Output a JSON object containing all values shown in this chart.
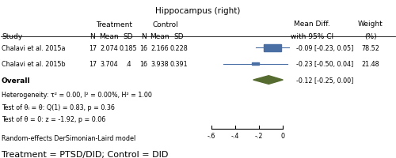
{
  "title": "Hippocampus (right)",
  "studies": [
    {
      "name": "Chalavi et al. 2015a",
      "treat_n": 17,
      "treat_mean": 2.074,
      "treat_sd": 0.185,
      "ctrl_n": 16,
      "ctrl_mean": 2.166,
      "ctrl_sd": 0.228,
      "effect": -0.09,
      "ci_low": -0.23,
      "ci_high": 0.05,
      "weight": 78.52,
      "weight_str": "78.52"
    },
    {
      "name": "Chalavi et al. 2015b",
      "treat_n": 17,
      "treat_mean": 3.704,
      "treat_sd": 0.4,
      "ctrl_n": 16,
      "ctrl_mean": 3.938,
      "ctrl_sd": 0.391,
      "effect": -0.23,
      "ci_low": -0.5,
      "ci_high": 0.04,
      "weight": 21.48,
      "weight_str": "21.48"
    }
  ],
  "overall": {
    "effect": -0.12,
    "ci_low": -0.25,
    "ci_high": 0.0
  },
  "heterogeneity_text": "Heterogeneity: τ² = 0.00, I² = 0.00%, H² = 1.00",
  "test_theta_text": "Test of θᵢ = θ: Q(1) = 0.83, p = 0.36",
  "test_effect_text": "Test of θ = 0: z = -1.92, p = 0.06",
  "footer1": "Random-effects DerSimonian-Laird model",
  "footer2": "Treatment = PTSD/DID; Control = DID",
  "treat_header": "Treatment",
  "ctrl_header": "Control",
  "axis_ticks": [
    -0.6,
    -0.4,
    -0.2,
    0.0
  ],
  "axis_tick_labels": [
    "-.6",
    "-.4",
    "-.2",
    "0"
  ],
  "xmin": -0.72,
  "xmax": 0.08,
  "forest_box_color": "#4a6fa5",
  "diamond_color": "#556b2f",
  "line_color": "#4a6fa5",
  "text_color": "#000000",
  "bg_color": "#ffffff"
}
